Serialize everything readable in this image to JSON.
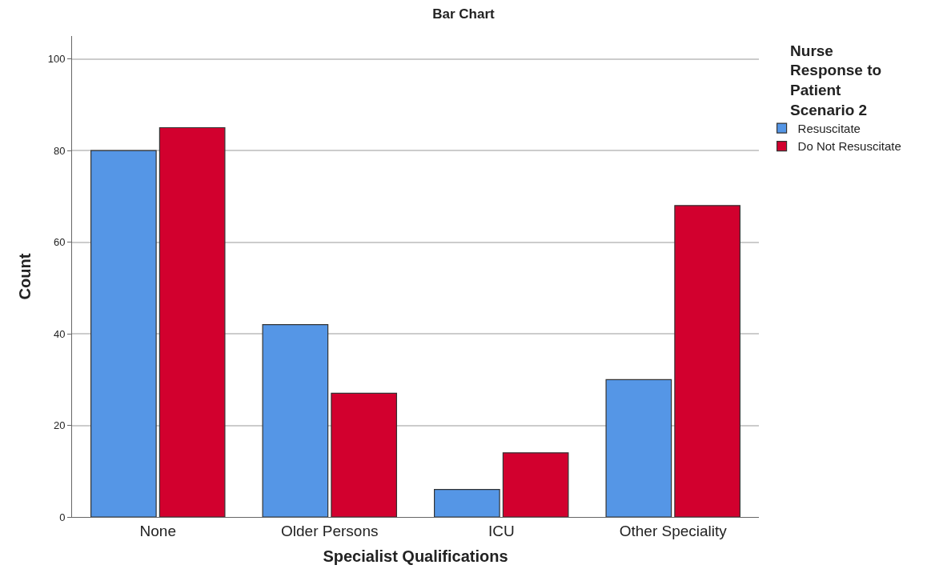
{
  "chart_data": {
    "type": "bar",
    "title": "Bar Chart",
    "xlabel": "Specialist Qualifications",
    "ylabel": "Count",
    "legend_title": "Nurse Response to Patient Scenario 2",
    "categories": [
      "None",
      "Older Persons",
      "ICU",
      "Other Speciality"
    ],
    "series": [
      {
        "name": "Resuscitate",
        "color": "#5596e6",
        "values": [
          80,
          42,
          6,
          30
        ]
      },
      {
        "name": "Do Not Resuscitate",
        "color": "#d2002e",
        "values": [
          85,
          27,
          14,
          68
        ]
      }
    ],
    "ylim": [
      0,
      105
    ],
    "yticks": [
      0,
      20,
      40,
      60,
      80,
      100
    ],
    "grid": "y",
    "legend": "top right"
  }
}
